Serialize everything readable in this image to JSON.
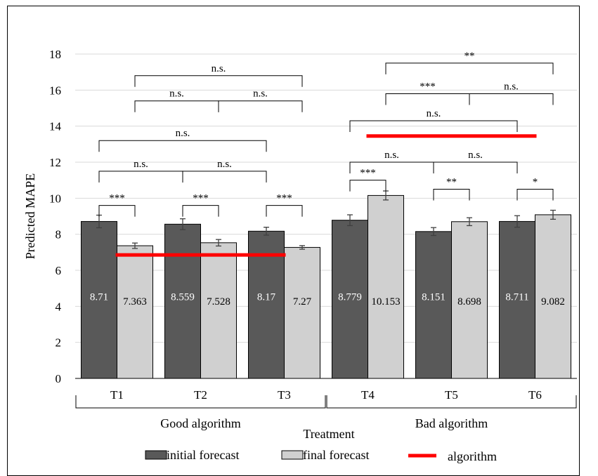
{
  "chart_data": {
    "type": "bar",
    "ylabel": "Predicted MAPE",
    "xlabel": "Treatment",
    "ylim": [
      0,
      18
    ],
    "yticks": [
      "0",
      "2",
      "4",
      "6",
      "8",
      "10",
      "12",
      "14",
      "16",
      "18"
    ],
    "grid": true,
    "categories": [
      "T1",
      "T2",
      "T3",
      "T4",
      "T5",
      "T6"
    ],
    "groups": [
      {
        "label": "Good algorithm",
        "categories": [
          "T1",
          "T2",
          "T3"
        ]
      },
      {
        "label": "Bad algorithm",
        "categories": [
          "T4",
          "T5",
          "T6"
        ]
      }
    ],
    "series": [
      {
        "name": "initial forecast",
        "color": "#595959",
        "values": [
          8.71,
          8.559,
          8.17,
          8.779,
          8.151,
          8.711
        ],
        "labels": [
          "8.71",
          "8.559",
          "8.17",
          "8.779",
          "8.151",
          "8.711"
        ],
        "errors": [
          0.35,
          0.3,
          0.22,
          0.3,
          0.22,
          0.32
        ]
      },
      {
        "name": "final forecast",
        "color": "#d0d0d0",
        "values": [
          7.363,
          7.528,
          7.27,
          10.153,
          8.698,
          9.082
        ],
        "labels": [
          "7.363",
          "7.528",
          "7.27",
          "10.153",
          "8.698",
          "9.082"
        ],
        "errors": [
          0.15,
          0.18,
          0.1,
          0.25,
          0.22,
          0.25
        ]
      }
    ],
    "algorithm_lines": [
      {
        "name": "algorithm",
        "value": 6.85,
        "from": "T1",
        "to": "T3"
      },
      {
        "name": "algorithm",
        "value": 13.45,
        "from": "T4",
        "to": "T6"
      }
    ],
    "annotations": [
      {
        "label": "***",
        "from": "T1.initial",
        "to": "T1.final",
        "y": 9.6
      },
      {
        "label": "***",
        "from": "T2.initial",
        "to": "T2.final",
        "y": 9.6
      },
      {
        "label": "***",
        "from": "T3.initial",
        "to": "T3.final",
        "y": 9.6
      },
      {
        "label": "n.s.",
        "from": "T1.initial",
        "to": "T2.initial",
        "y": 11.5
      },
      {
        "label": "n.s.",
        "from": "T2.initial",
        "to": "T3.initial",
        "y": 11.5
      },
      {
        "label": "n.s.",
        "from": "T1.initial",
        "to": "T3.initial",
        "y": 13.2
      },
      {
        "label": "n.s.",
        "from": "T1.final",
        "to": "T2.final",
        "y": 15.4
      },
      {
        "label": "n.s.",
        "from": "T2.final",
        "to": "T3.final",
        "y": 15.4
      },
      {
        "label": "n.s.",
        "from": "T1.final",
        "to": "T3.final",
        "y": 16.8
      },
      {
        "label": "***",
        "from": "T4.initial",
        "to": "T4.final",
        "y": 11.0
      },
      {
        "label": "**",
        "from": "T5.initial",
        "to": "T5.final",
        "y": 10.5
      },
      {
        "label": "*",
        "from": "T6.initial",
        "to": "T6.final",
        "y": 10.5
      },
      {
        "label": "n.s.",
        "from": "T4.initial",
        "to": "T5.initial",
        "y": 12.0
      },
      {
        "label": "n.s.",
        "from": "T5.initial",
        "to": "T6.initial",
        "y": 12.0
      },
      {
        "label": "n.s.",
        "from": "T4.initial",
        "to": "T6.initial",
        "y": 14.3
      },
      {
        "label": "***",
        "from": "T4.final",
        "to": "T5.final",
        "y": 15.8
      },
      {
        "label": "n.s.",
        "from": "T5.final",
        "to": "T6.final",
        "y": 15.8
      },
      {
        "label": "**",
        "from": "T4.final",
        "to": "T6.final",
        "y": 17.5
      }
    ],
    "legend": {
      "position": "bottom",
      "items": [
        {
          "label": "initial forecast",
          "kind": "bar",
          "color": "#595959"
        },
        {
          "label": "final forecast",
          "kind": "bar",
          "color": "#d0d0d0"
        },
        {
          "label": "algorithm",
          "kind": "line",
          "color": "#ff0000"
        }
      ]
    }
  }
}
